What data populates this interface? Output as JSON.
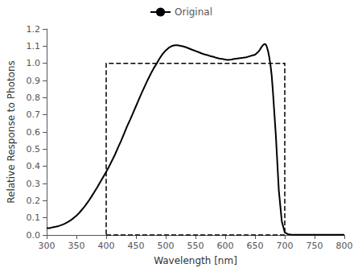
{
  "chart_data": {
    "type": "line",
    "xlabel": "Wavelength [nm]",
    "ylabel": "Relative Response to Photons",
    "xlim": [
      300,
      800
    ],
    "ylim": [
      0.0,
      1.2
    ],
    "xticks": [
      300,
      350,
      400,
      450,
      500,
      550,
      600,
      650,
      700,
      750,
      800
    ],
    "yticks": [
      {
        "value": 0.0,
        "label": "0.0"
      },
      0.1,
      0.2,
      0.3,
      0.4,
      0.5,
      0.6,
      0.7,
      0.8,
      0.9,
      {
        "value": 1.0,
        "label": "1.0"
      },
      1.1,
      1.2
    ],
    "grid": false,
    "legend": "top",
    "box": {
      "x": [
        400,
        700
      ],
      "y": [
        0.0,
        1.0
      ]
    },
    "x": [
      300,
      305,
      310,
      315,
      320,
      325,
      330,
      335,
      340,
      345,
      350,
      355,
      360,
      365,
      370,
      375,
      380,
      385,
      390,
      395,
      400,
      405,
      410,
      415,
      420,
      425,
      430,
      435,
      440,
      445,
      450,
      455,
      460,
      465,
      470,
      475,
      480,
      485,
      490,
      495,
      500,
      505,
      510,
      515,
      520,
      525,
      530,
      535,
      540,
      545,
      550,
      555,
      560,
      565,
      570,
      575,
      580,
      585,
      590,
      595,
      600,
      605,
      610,
      615,
      620,
      625,
      630,
      635,
      640,
      645,
      650,
      655,
      658,
      660,
      662,
      664,
      666,
      668,
      670,
      672,
      674,
      676,
      678,
      680,
      685,
      690,
      695,
      700,
      705,
      710,
      715,
      720,
      730,
      740,
      750,
      760,
      770,
      780,
      790,
      800
    ],
    "series": [
      {
        "name": "Original",
        "color": "#000000",
        "values": [
          0.04,
          0.04,
          0.045,
          0.048,
          0.052,
          0.058,
          0.065,
          0.074,
          0.085,
          0.098,
          0.112,
          0.13,
          0.15,
          0.172,
          0.196,
          0.222,
          0.25,
          0.278,
          0.308,
          0.338,
          0.368,
          0.4,
          0.435,
          0.47,
          0.51,
          0.548,
          0.59,
          0.632,
          0.67,
          0.71,
          0.75,
          0.79,
          0.83,
          0.868,
          0.905,
          0.94,
          0.972,
          1.0,
          1.03,
          1.055,
          1.075,
          1.09,
          1.1,
          1.105,
          1.105,
          1.102,
          1.098,
          1.092,
          1.085,
          1.078,
          1.072,
          1.065,
          1.058,
          1.052,
          1.048,
          1.042,
          1.038,
          1.032,
          1.028,
          1.025,
          1.022,
          1.02,
          1.022,
          1.025,
          1.028,
          1.03,
          1.032,
          1.035,
          1.04,
          1.045,
          1.05,
          1.065,
          1.078,
          1.09,
          1.1,
          1.108,
          1.112,
          1.11,
          1.095,
          1.07,
          1.035,
          0.99,
          0.93,
          0.84,
          0.58,
          0.26,
          0.08,
          0.015,
          0.005,
          0.002,
          0.001,
          0.001,
          0.001,
          0.001,
          0.001,
          0.001,
          0.001,
          0.001,
          0.001,
          0.001
        ]
      }
    ]
  }
}
